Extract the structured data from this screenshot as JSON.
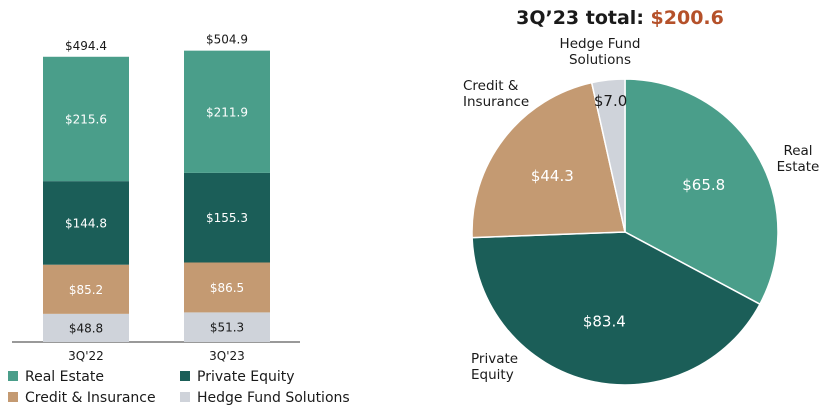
{
  "colors": {
    "real_estate": "#4a9e8a",
    "private_equity": "#1b5e58",
    "credit_insurance": "#c49a72",
    "hedge_fund": "#cfd3da",
    "title_accent": "#b5512a",
    "title_dark": "#1a1a1a"
  },
  "chart_data": [
    {
      "type": "bar",
      "stacked": true,
      "categories": [
        "3Q'22",
        "3Q'23"
      ],
      "series": [
        {
          "name": "Hedge Fund Solutions",
          "values": [
            48.8,
            51.3
          ],
          "labels": [
            "$48.8",
            "$51.3"
          ],
          "color_key": "hedge_fund"
        },
        {
          "name": "Credit & Insurance",
          "values": [
            85.2,
            86.5
          ],
          "labels": [
            "$85.2",
            "$86.5"
          ],
          "color_key": "credit_insurance"
        },
        {
          "name": "Private Equity",
          "values": [
            144.8,
            155.3
          ],
          "labels": [
            "$144.8",
            "$155.3"
          ],
          "color_key": "private_equity"
        },
        {
          "name": "Real Estate",
          "values": [
            215.6,
            211.9
          ],
          "labels": [
            "$215.6",
            "$211.9"
          ],
          "color_key": "real_estate"
        }
      ],
      "totals": [
        494.4,
        504.9
      ],
      "total_labels": [
        "$494.4",
        "$504.9"
      ],
      "ylim": [
        0,
        520
      ],
      "legend": [
        "Real Estate",
        "Private Equity",
        "Credit & Insurance",
        "Hedge Fund Solutions"
      ]
    },
    {
      "type": "pie",
      "title_prefix": "3Q’23 total: ",
      "title_value": "$200.6",
      "slices": [
        {
          "name": "Real Estate",
          "label_lines": [
            "Real",
            "Estate"
          ],
          "value": 65.8,
          "value_label": "$65.8",
          "color_key": "real_estate"
        },
        {
          "name": "Private Equity",
          "label_lines": [
            "Private",
            "Equity"
          ],
          "value": 83.4,
          "value_label": "$83.4",
          "color_key": "private_equity"
        },
        {
          "name": "Credit & Insurance",
          "label_lines": [
            "Credit &",
            "Insurance"
          ],
          "value": 44.3,
          "value_label": "$44.3",
          "color_key": "credit_insurance"
        },
        {
          "name": "Hedge Fund Solutions",
          "label_lines": [
            "Hedge Fund",
            "Solutions"
          ],
          "value": 7.0,
          "value_label": "$7.0",
          "color_key": "hedge_fund"
        }
      ]
    }
  ]
}
